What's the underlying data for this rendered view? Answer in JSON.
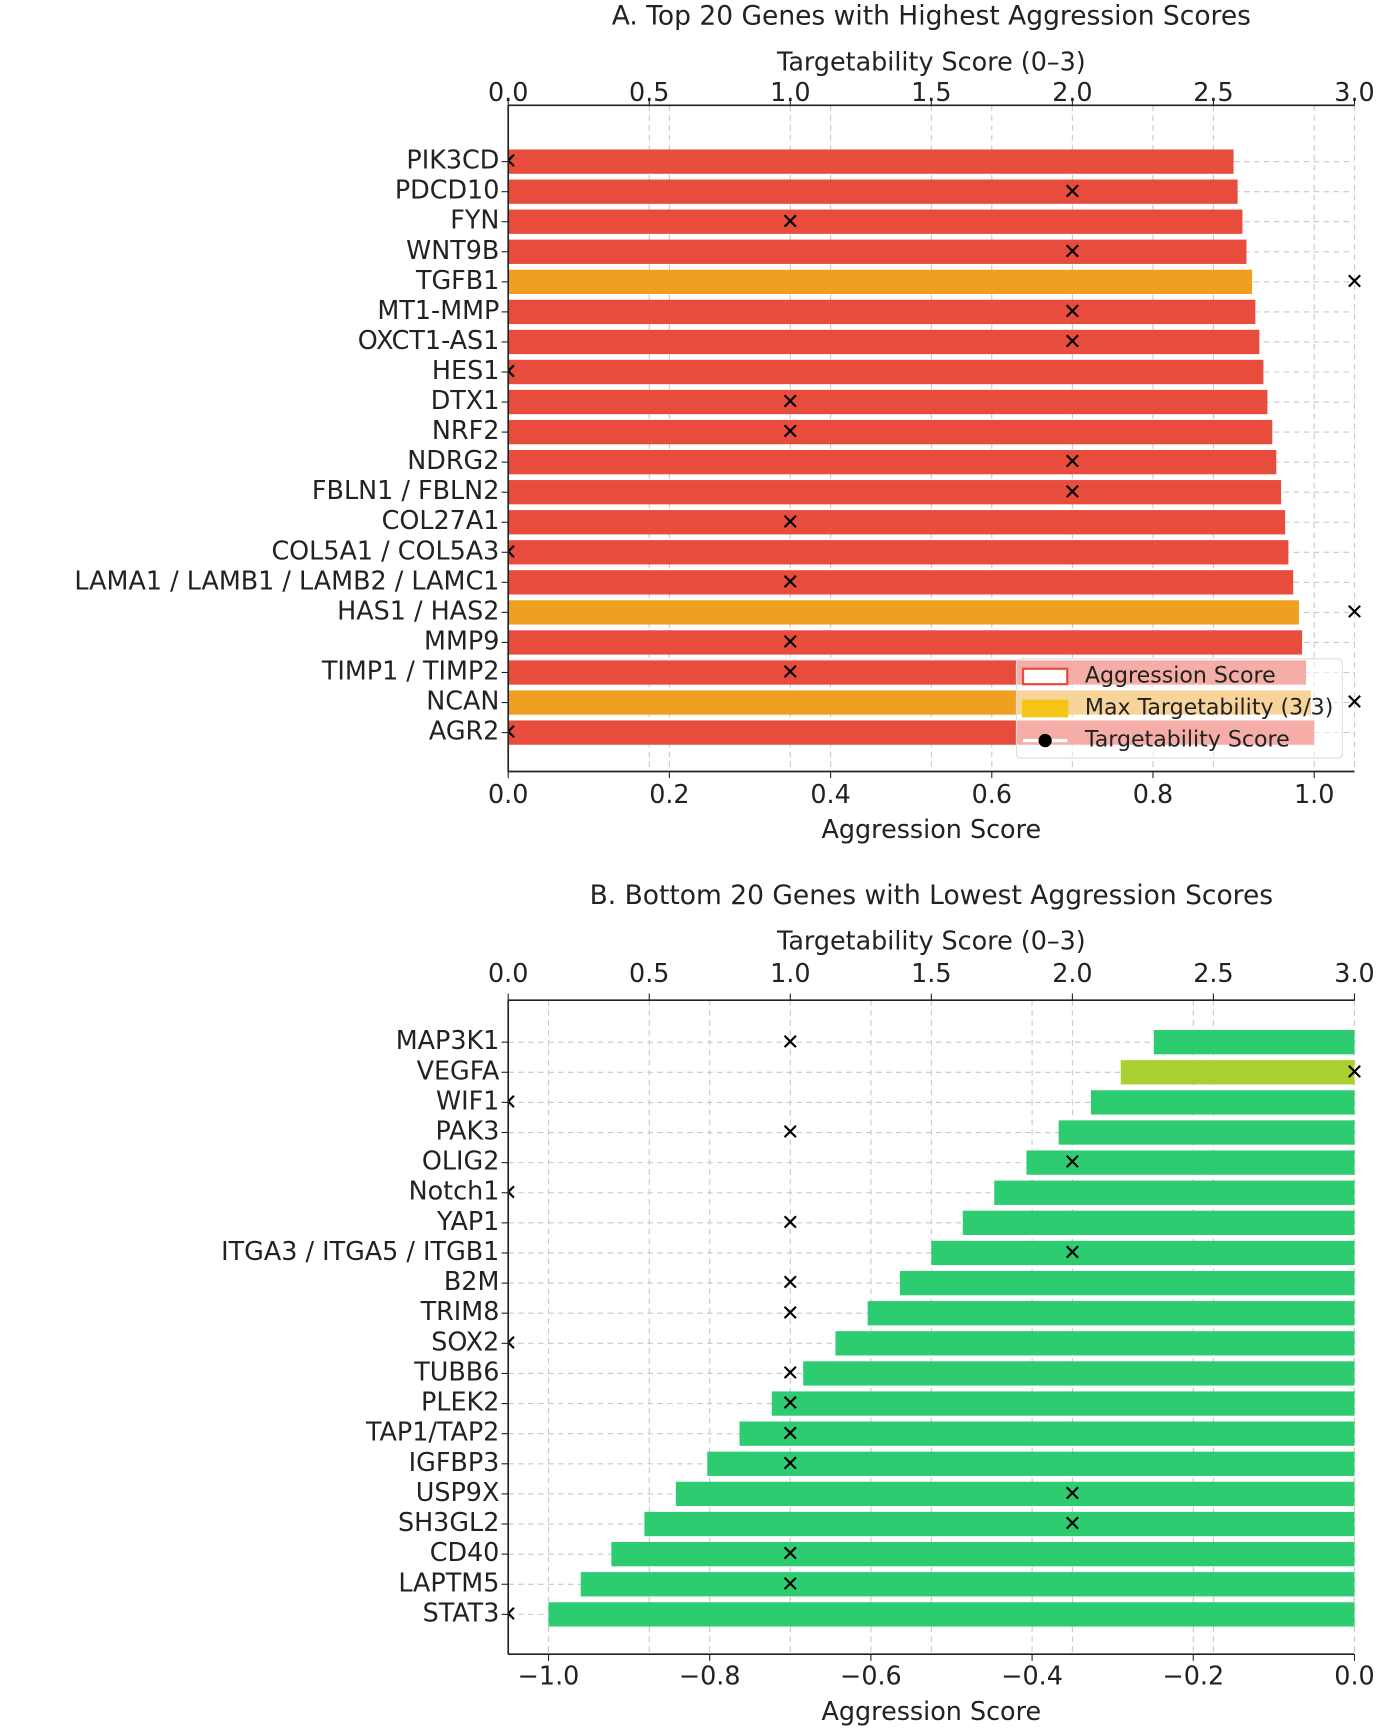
{
  "chart_data": [
    {
      "type": "bar",
      "orientation": "horizontal",
      "title": "A. Top 20 Genes with Highest Aggression Scores",
      "xlabel": "Aggression Score",
      "x2label": "Targetability Score (0–3)",
      "categories": [
        "PIK3CD",
        "PDCD10",
        "FYN",
        "WNT9B",
        "TGFB1",
        "MT1-MMP",
        "OXCT1-AS1",
        "HES1",
        "DTX1",
        "NRF2",
        "NDRG2",
        "FBLN1 / FBLN2",
        "COL27A1",
        "COL5A1 / COL5A3",
        "LAMA1 / LAMB1 / LAMB2 / LAMC1",
        "HAS1 / HAS2",
        "MMP9",
        "TIMP1 / TIMP2",
        "NCAN",
        "AGR2"
      ],
      "series": [
        {
          "name": "Aggression Score",
          "color": "#e74c3c",
          "colors": [
            "#e74c3c",
            "#e74c3c",
            "#e74c3c",
            "#e74c3c",
            "#f0a020",
            "#e74c3c",
            "#e74c3c",
            "#e74c3c",
            "#e74c3c",
            "#e74c3c",
            "#e74c3c",
            "#e74c3c",
            "#e74c3c",
            "#e74c3c",
            "#e74c3c",
            "#f0a020",
            "#e74c3c",
            "#e74c3c",
            "#f0a020",
            "#e74c3c"
          ],
          "values": [
            0.9,
            0.905,
            0.911,
            0.916,
            0.923,
            0.927,
            0.932,
            0.937,
            0.942,
            0.948,
            0.953,
            0.959,
            0.964,
            0.968,
            0.974,
            0.981,
            0.985,
            0.99,
            0.996,
            1.0
          ]
        },
        {
          "name": "Targetability Score",
          "axis": "x2",
          "color": "#000000",
          "values": [
            0,
            2,
            1,
            2,
            3,
            2,
            2,
            0,
            1,
            1,
            2,
            2,
            1,
            0,
            1,
            3,
            1,
            1,
            3,
            0
          ]
        }
      ],
      "legend": [
        {
          "label": "Aggression Score",
          "color": "#e74c3c"
        },
        {
          "label": "Max Targetability (3/3)",
          "color": "#f5c518"
        },
        {
          "label": "Targetability Score",
          "color": "#000000"
        }
      ],
      "legend_position": "lower right",
      "xlim": [
        0,
        1.05
      ],
      "xticks": [
        {
          "value": 0,
          "label": "0.0"
        },
        0.2,
        0.4,
        0.6,
        0.8,
        {
          "value": 1,
          "label": "1.0"
        }
      ],
      "x2lim": [
        0,
        3
      ],
      "x2ticks": [
        {
          "value": 0,
          "label": "0.0"
        },
        0.5,
        {
          "value": 1,
          "label": "1.0"
        },
        1.5,
        {
          "value": 2,
          "label": "2.0"
        },
        2.5,
        {
          "value": 3,
          "label": "3.0"
        }
      ],
      "grid": true
    },
    {
      "type": "bar",
      "orientation": "horizontal",
      "title": "B. Bottom 20 Genes with Lowest Aggression Scores",
      "xlabel": "Aggression Score",
      "x2label": "Targetability Score (0–3)",
      "categories": [
        "MAP3K1",
        "VEGFA",
        "WIF1",
        "PAK3",
        "OLIG2",
        "Notch1",
        "YAP1",
        "ITGA3 / ITGA5 / ITGB1",
        "B2M",
        "TRIM8",
        "SOX2",
        "TUBB6",
        "PLEK2",
        "TAP1/TAP2",
        "IGFBP3",
        "USP9X",
        "SH3GL2",
        "CD40",
        "LAPTM5",
        "STAT3"
      ],
      "series": [
        {
          "color": "#2ecc71",
          "colors": [
            "#2ecc71",
            "#a8d030",
            "#2ecc71",
            "#2ecc71",
            "#2ecc71",
            "#2ecc71",
            "#2ecc71",
            "#2ecc71",
            "#2ecc71",
            "#2ecc71",
            "#2ecc71",
            "#2ecc71",
            "#2ecc71",
            "#2ecc71",
            "#2ecc71",
            "#2ecc71",
            "#2ecc71",
            "#2ecc71",
            "#2ecc71",
            "#2ecc71"
          ],
          "values": [
            -0.249,
            -0.29,
            -0.327,
            -0.367,
            -0.407,
            -0.447,
            -0.486,
            -0.525,
            -0.564,
            -0.604,
            -0.644,
            -0.684,
            -0.723,
            -0.763,
            -0.803,
            -0.842,
            -0.881,
            -0.922,
            -0.96,
            -1.0
          ]
        },
        {
          "axis": "x2",
          "color": "#000000",
          "values": [
            1,
            3,
            0,
            1,
            2,
            0,
            1,
            2,
            1,
            1,
            0,
            1,
            1,
            1,
            1,
            2,
            2,
            1,
            1,
            0
          ]
        }
      ],
      "xlim": [
        -1.05,
        0
      ],
      "xticks": [
        {
          "value": -1,
          "label": "−1.0"
        },
        {
          "value": -0.8,
          "label": "−0.8"
        },
        {
          "value": -0.6,
          "label": "−0.6"
        },
        {
          "value": -0.4,
          "label": "−0.4"
        },
        {
          "value": -0.2,
          "label": "−0.2"
        },
        {
          "value": 0,
          "label": "0.0"
        }
      ],
      "x2lim": [
        0,
        3
      ],
      "x2ticks": [
        {
          "value": 0,
          "label": "0.0"
        },
        0.5,
        {
          "value": 1,
          "label": "1.0"
        },
        1.5,
        {
          "value": 2,
          "label": "2.0"
        },
        2.5,
        {
          "value": 3,
          "label": "3.0"
        }
      ],
      "grid": true
    }
  ]
}
